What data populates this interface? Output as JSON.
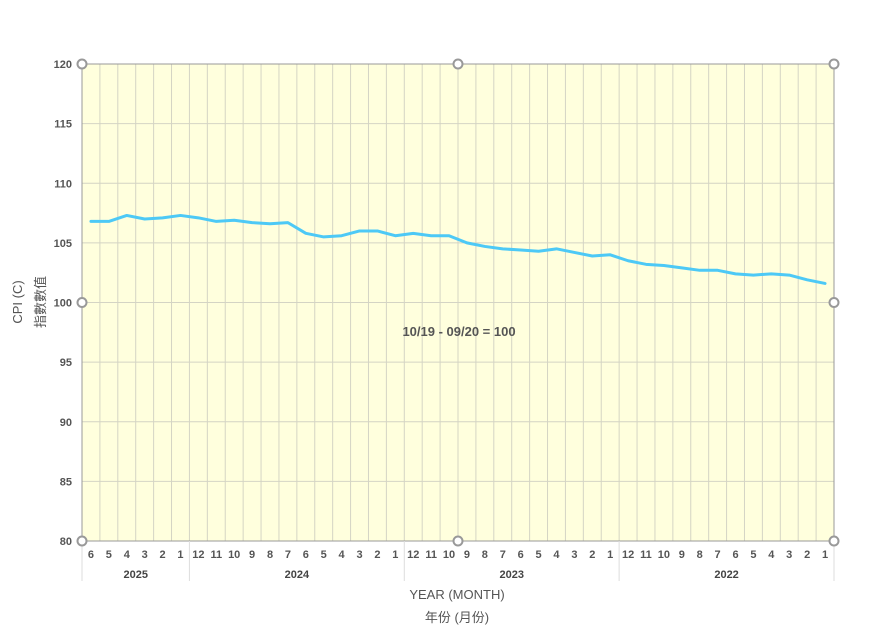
{
  "chart_data": {
    "type": "line",
    "title": "",
    "annotation": "10/19 - 09/20 = 100",
    "xlabel": "YEAR (MONTH)",
    "xlabel_zh": "年份 (月份)",
    "ylabel": "CPI (C)",
    "ylabel_zh": "指數數值",
    "ylim": [
      80,
      120
    ],
    "yticks": [
      80,
      85,
      90,
      95,
      100,
      105,
      110,
      115,
      120
    ],
    "grid": true,
    "background_color": "#ffffdd",
    "line_color": "#4dc9f6",
    "years": [
      {
        "label": "2025",
        "months": [
          "6",
          "5",
          "4",
          "3",
          "2",
          "1"
        ]
      },
      {
        "label": "2024",
        "months": [
          "12",
          "11",
          "10",
          "9",
          "8",
          "7",
          "6",
          "5",
          "4",
          "3",
          "2",
          "1"
        ]
      },
      {
        "label": "2023",
        "months": [
          "12",
          "11",
          "10",
          "9",
          "8",
          "7",
          "6",
          "5",
          "4",
          "3",
          "2",
          "1"
        ]
      },
      {
        "label": "2022",
        "months": [
          "12",
          "11",
          "10",
          "9",
          "8",
          "7",
          "6",
          "5",
          "4",
          "3",
          "2",
          "1"
        ]
      }
    ],
    "series": [
      {
        "name": "CPI (C)",
        "values": [
          106.8,
          106.8,
          107.3,
          107.0,
          107.1,
          107.3,
          107.1,
          106.8,
          106.9,
          106.7,
          106.6,
          106.7,
          105.8,
          105.5,
          105.6,
          106.0,
          106.0,
          105.6,
          105.8,
          105.6,
          105.6,
          105.0,
          104.7,
          104.5,
          104.4,
          104.3,
          104.5,
          104.2,
          103.9,
          104.0,
          103.5,
          103.2,
          103.1,
          102.9,
          102.7,
          102.7,
          102.4,
          102.3,
          102.4,
          102.3,
          101.9,
          101.6
        ]
      }
    ]
  }
}
